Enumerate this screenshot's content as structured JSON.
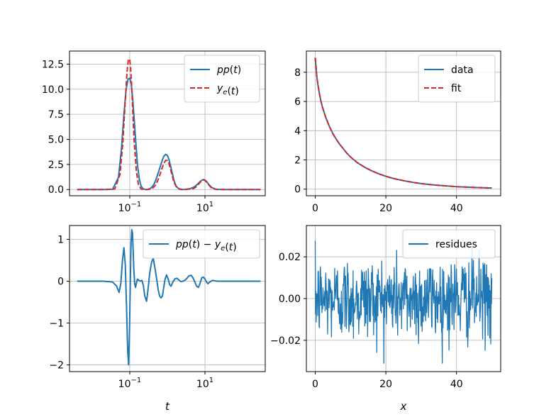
{
  "figure": {
    "background": "#ffffff",
    "grid_color": "#b0b0b0"
  },
  "chart_data": [
    {
      "id": "top-left",
      "type": "line",
      "xscale": "log",
      "xlim": [
        0.0025,
        400
      ],
      "ylim": [
        -0.62,
        13.8
      ],
      "grid": true,
      "xlabel": "",
      "ylabel": "",
      "xticks": [
        {
          "value": 0.1,
          "label_base": "10",
          "label_exp": "−1"
        },
        {
          "value": 10,
          "label_base": "10",
          "label_exp": "1"
        }
      ],
      "yticks": [
        {
          "value": 0,
          "label": "0.0"
        },
        {
          "value": 2.5,
          "label": "2.5"
        },
        {
          "value": 5,
          "label": "5.0"
        },
        {
          "value": 7.5,
          "label": "7.5"
        },
        {
          "value": 10,
          "label": "10.0"
        },
        {
          "value": 12.5,
          "label": "12.5"
        }
      ],
      "legend": {
        "position": "top-right",
        "entries": [
          {
            "label": "pp(t)",
            "color": "#1f77b4",
            "style": "solid"
          },
          {
            "label": "y_e(t)",
            "color": "#d62728",
            "style": "dashed"
          }
        ]
      },
      "series": [
        {
          "name": "pp(t)",
          "color": "#1f77b4",
          "style": "solid",
          "x": [
            0.004,
            0.02,
            0.035,
            0.05,
            0.06,
            0.07,
            0.08,
            0.09,
            0.1,
            0.11,
            0.12,
            0.14,
            0.16,
            0.18,
            0.2,
            0.22,
            0.25,
            0.28,
            0.31,
            0.35,
            0.4,
            0.45,
            0.5,
            0.6,
            0.7,
            0.8,
            0.9,
            1.0,
            1.1,
            1.3,
            1.5,
            1.7,
            2.0,
            2.5,
            3.0,
            4.0,
            5.0,
            6.0,
            7.0,
            8.0,
            9.0,
            10,
            11,
            13,
            15,
            20,
            30,
            60,
            100,
            300
          ],
          "y": [
            0,
            0,
            0.02,
            1.2,
            4.0,
            7.5,
            10.0,
            11.0,
            11.1,
            10.5,
            9.0,
            5.5,
            2.5,
            1.0,
            0.35,
            0.1,
            0.02,
            0,
            0.02,
            0.1,
            0.3,
            0.6,
            1.0,
            1.9,
            2.7,
            3.3,
            3.5,
            3.4,
            3.0,
            1.9,
            0.9,
            0.35,
            0.08,
            0,
            0.02,
            0.08,
            0.22,
            0.45,
            0.7,
            0.9,
            1.0,
            0.95,
            0.8,
            0.45,
            0.2,
            0.02,
            0,
            0,
            0,
            0
          ]
        },
        {
          "name": "y_e(t)",
          "color": "#d62728",
          "style": "dashed",
          "x": [
            0.004,
            0.02,
            0.04,
            0.055,
            0.065,
            0.075,
            0.085,
            0.092,
            0.1,
            0.106,
            0.115,
            0.13,
            0.15,
            0.17,
            0.2,
            0.25,
            0.3,
            0.4,
            0.5,
            0.6,
            0.7,
            0.8,
            0.9,
            1.0,
            1.1,
            1.3,
            1.5,
            1.8,
            2.2,
            3,
            5,
            6,
            7,
            8,
            9,
            10,
            11,
            13,
            15,
            20,
            40,
            100,
            300
          ],
          "y": [
            0,
            0,
            0.05,
            1.5,
            4.5,
            8.5,
            11.8,
            13.0,
            12.9,
            12.0,
            9.5,
            5.0,
            1.8,
            0.5,
            0.05,
            0,
            0,
            0.1,
            0.5,
            1.2,
            2.0,
            2.6,
            2.9,
            2.9,
            2.6,
            1.6,
            0.7,
            0.15,
            0.01,
            0,
            0.1,
            0.3,
            0.6,
            0.85,
            0.95,
            0.9,
            0.75,
            0.4,
            0.15,
            0.01,
            0,
            0,
            0
          ]
        }
      ]
    },
    {
      "id": "top-right",
      "type": "line",
      "xlim": [
        -2.5,
        52.5
      ],
      "ylim": [
        -0.45,
        9.45
      ],
      "grid": true,
      "xlabel": "",
      "ylabel": "",
      "xticks": [
        {
          "value": 0,
          "label": "0"
        },
        {
          "value": 20,
          "label": "20"
        },
        {
          "value": 40,
          "label": "40"
        }
      ],
      "yticks": [
        {
          "value": 0,
          "label": "0"
        },
        {
          "value": 2,
          "label": "2"
        },
        {
          "value": 4,
          "label": "4"
        },
        {
          "value": 6,
          "label": "6"
        },
        {
          "value": 8,
          "label": "8"
        }
      ],
      "legend": {
        "position": "top-right",
        "entries": [
          {
            "label": "data",
            "color": "#1f77b4",
            "style": "solid"
          },
          {
            "label": "fit",
            "color": "#d62728",
            "style": "dashed"
          }
        ]
      },
      "series": [
        {
          "name": "data",
          "color": "#1f77b4",
          "style": "solid",
          "x": [
            0,
            0.5,
            1,
            1.5,
            2,
            3,
            4,
            5,
            6,
            7,
            8,
            9,
            10,
            12,
            14,
            16,
            18,
            20,
            22,
            25,
            28,
            30,
            33,
            36,
            40,
            43,
            46,
            50
          ],
          "y": [
            9.0,
            7.6,
            6.8,
            6.15,
            5.65,
            4.9,
            4.3,
            3.8,
            3.4,
            3.05,
            2.75,
            2.45,
            2.2,
            1.8,
            1.5,
            1.25,
            1.05,
            0.88,
            0.74,
            0.58,
            0.45,
            0.38,
            0.3,
            0.24,
            0.17,
            0.14,
            0.11,
            0.08
          ]
        },
        {
          "name": "fit",
          "color": "#d62728",
          "style": "dashed",
          "x": [
            0,
            0.5,
            1,
            1.5,
            2,
            3,
            4,
            5,
            6,
            7,
            8,
            9,
            10,
            12,
            14,
            16,
            18,
            20,
            22,
            25,
            28,
            30,
            33,
            36,
            40,
            43,
            46,
            50
          ],
          "y": [
            9.0,
            7.6,
            6.8,
            6.15,
            5.65,
            4.9,
            4.3,
            3.8,
            3.4,
            3.05,
            2.75,
            2.45,
            2.2,
            1.8,
            1.5,
            1.25,
            1.05,
            0.88,
            0.74,
            0.58,
            0.45,
            0.38,
            0.3,
            0.24,
            0.17,
            0.14,
            0.11,
            0.08
          ]
        }
      ]
    },
    {
      "id": "bottom-left",
      "type": "line",
      "xscale": "log",
      "xlim": [
        0.0025,
        400
      ],
      "ylim": [
        -2.16,
        1.33
      ],
      "grid": true,
      "xlabel": "t",
      "ylabel": "",
      "xticks": [
        {
          "value": 0.1,
          "label_base": "10",
          "label_exp": "−1"
        },
        {
          "value": 10,
          "label_base": "10",
          "label_exp": "1"
        }
      ],
      "yticks": [
        {
          "value": -2,
          "label": "−2"
        },
        {
          "value": -1,
          "label": "−1"
        },
        {
          "value": 0,
          "label": "0"
        },
        {
          "value": 1,
          "label": "1"
        }
      ],
      "legend": {
        "position": "top-right",
        "entries": [
          {
            "label": "pp(t) − y_e(t)",
            "color": "#1f77b4",
            "style": "solid"
          }
        ]
      },
      "series": [
        {
          "name": "pp(t) − y_e(t)",
          "color": "#1f77b4",
          "style": "solid",
          "x": [
            0.004,
            0.02,
            0.035,
            0.045,
            0.052,
            0.058,
            0.064,
            0.07,
            0.076,
            0.082,
            0.088,
            0.093,
            0.098,
            0.103,
            0.108,
            0.113,
            0.118,
            0.123,
            0.128,
            0.135,
            0.142,
            0.15,
            0.16,
            0.175,
            0.19,
            0.21,
            0.23,
            0.25,
            0.28,
            0.31,
            0.34,
            0.38,
            0.42,
            0.47,
            0.52,
            0.57,
            0.62,
            0.68,
            0.74,
            0.8,
            0.87,
            0.95,
            1.05,
            1.15,
            1.25,
            1.4,
            1.6,
            1.8,
            2.0,
            2.3,
            2.6,
            3.0,
            3.4,
            3.8,
            4.3,
            4.8,
            5.4,
            6.0,
            6.7,
            7.4,
            8.2,
            9.0,
            10,
            11,
            12,
            13,
            14.5,
            16,
            18,
            21,
            25,
            40,
            100,
            300
          ],
          "y": [
            0,
            0,
            -0.02,
            -0.12,
            -0.27,
            -0.05,
            0.5,
            0.8,
            0.4,
            -0.6,
            -1.65,
            -2.0,
            -1.3,
            -0.1,
            0.9,
            1.23,
            1.15,
            0.75,
            0.3,
            -0.05,
            -0.15,
            -0.05,
            0.05,
            0.02,
            0,
            0.02,
            -0.1,
            -0.35,
            -0.48,
            -0.15,
            0.2,
            0.45,
            0.55,
            0.3,
            0.05,
            -0.2,
            -0.35,
            -0.4,
            -0.35,
            -0.15,
            0.05,
            0.15,
            0.05,
            -0.08,
            -0.12,
            -0.02,
            0.06,
            0.07,
            0.03,
            -0.01,
            0.0,
            0.03,
            0.08,
            0.13,
            0.14,
            0.08,
            -0.02,
            -0.12,
            -0.15,
            -0.05,
            0.08,
            0.1,
            0.05,
            -0.02,
            -0.06,
            -0.03,
            0.0,
            0.02,
            0.01,
            0,
            0,
            0,
            0,
            0
          ]
        }
      ]
    },
    {
      "id": "bottom-right",
      "type": "line",
      "xlim": [
        -2.5,
        52.5
      ],
      "ylim": [
        -0.035,
        0.035
      ],
      "grid": true,
      "xlabel": "x",
      "ylabel": "",
      "xticks": [
        {
          "value": 0,
          "label": "0"
        },
        {
          "value": 20,
          "label": "20"
        },
        {
          "value": 40,
          "label": "40"
        }
      ],
      "yticks": [
        {
          "value": -0.02,
          "label": "−0.02"
        },
        {
          "value": 0,
          "label": "0.00"
        },
        {
          "value": 0.02,
          "label": "0.02"
        }
      ],
      "legend": {
        "position": "top-right",
        "entries": [
          {
            "label": "residues",
            "color": "#1f77b4",
            "style": "solid"
          }
        ]
      },
      "series": [
        {
          "name": "residues",
          "color": "#1f77b4",
          "style": "solid",
          "noise": true,
          "x_range": [
            0,
            50
          ],
          "n_points": 500,
          "amplitude": 0.01,
          "ymin": -0.031,
          "ymax": 0.034
        }
      ]
    }
  ]
}
